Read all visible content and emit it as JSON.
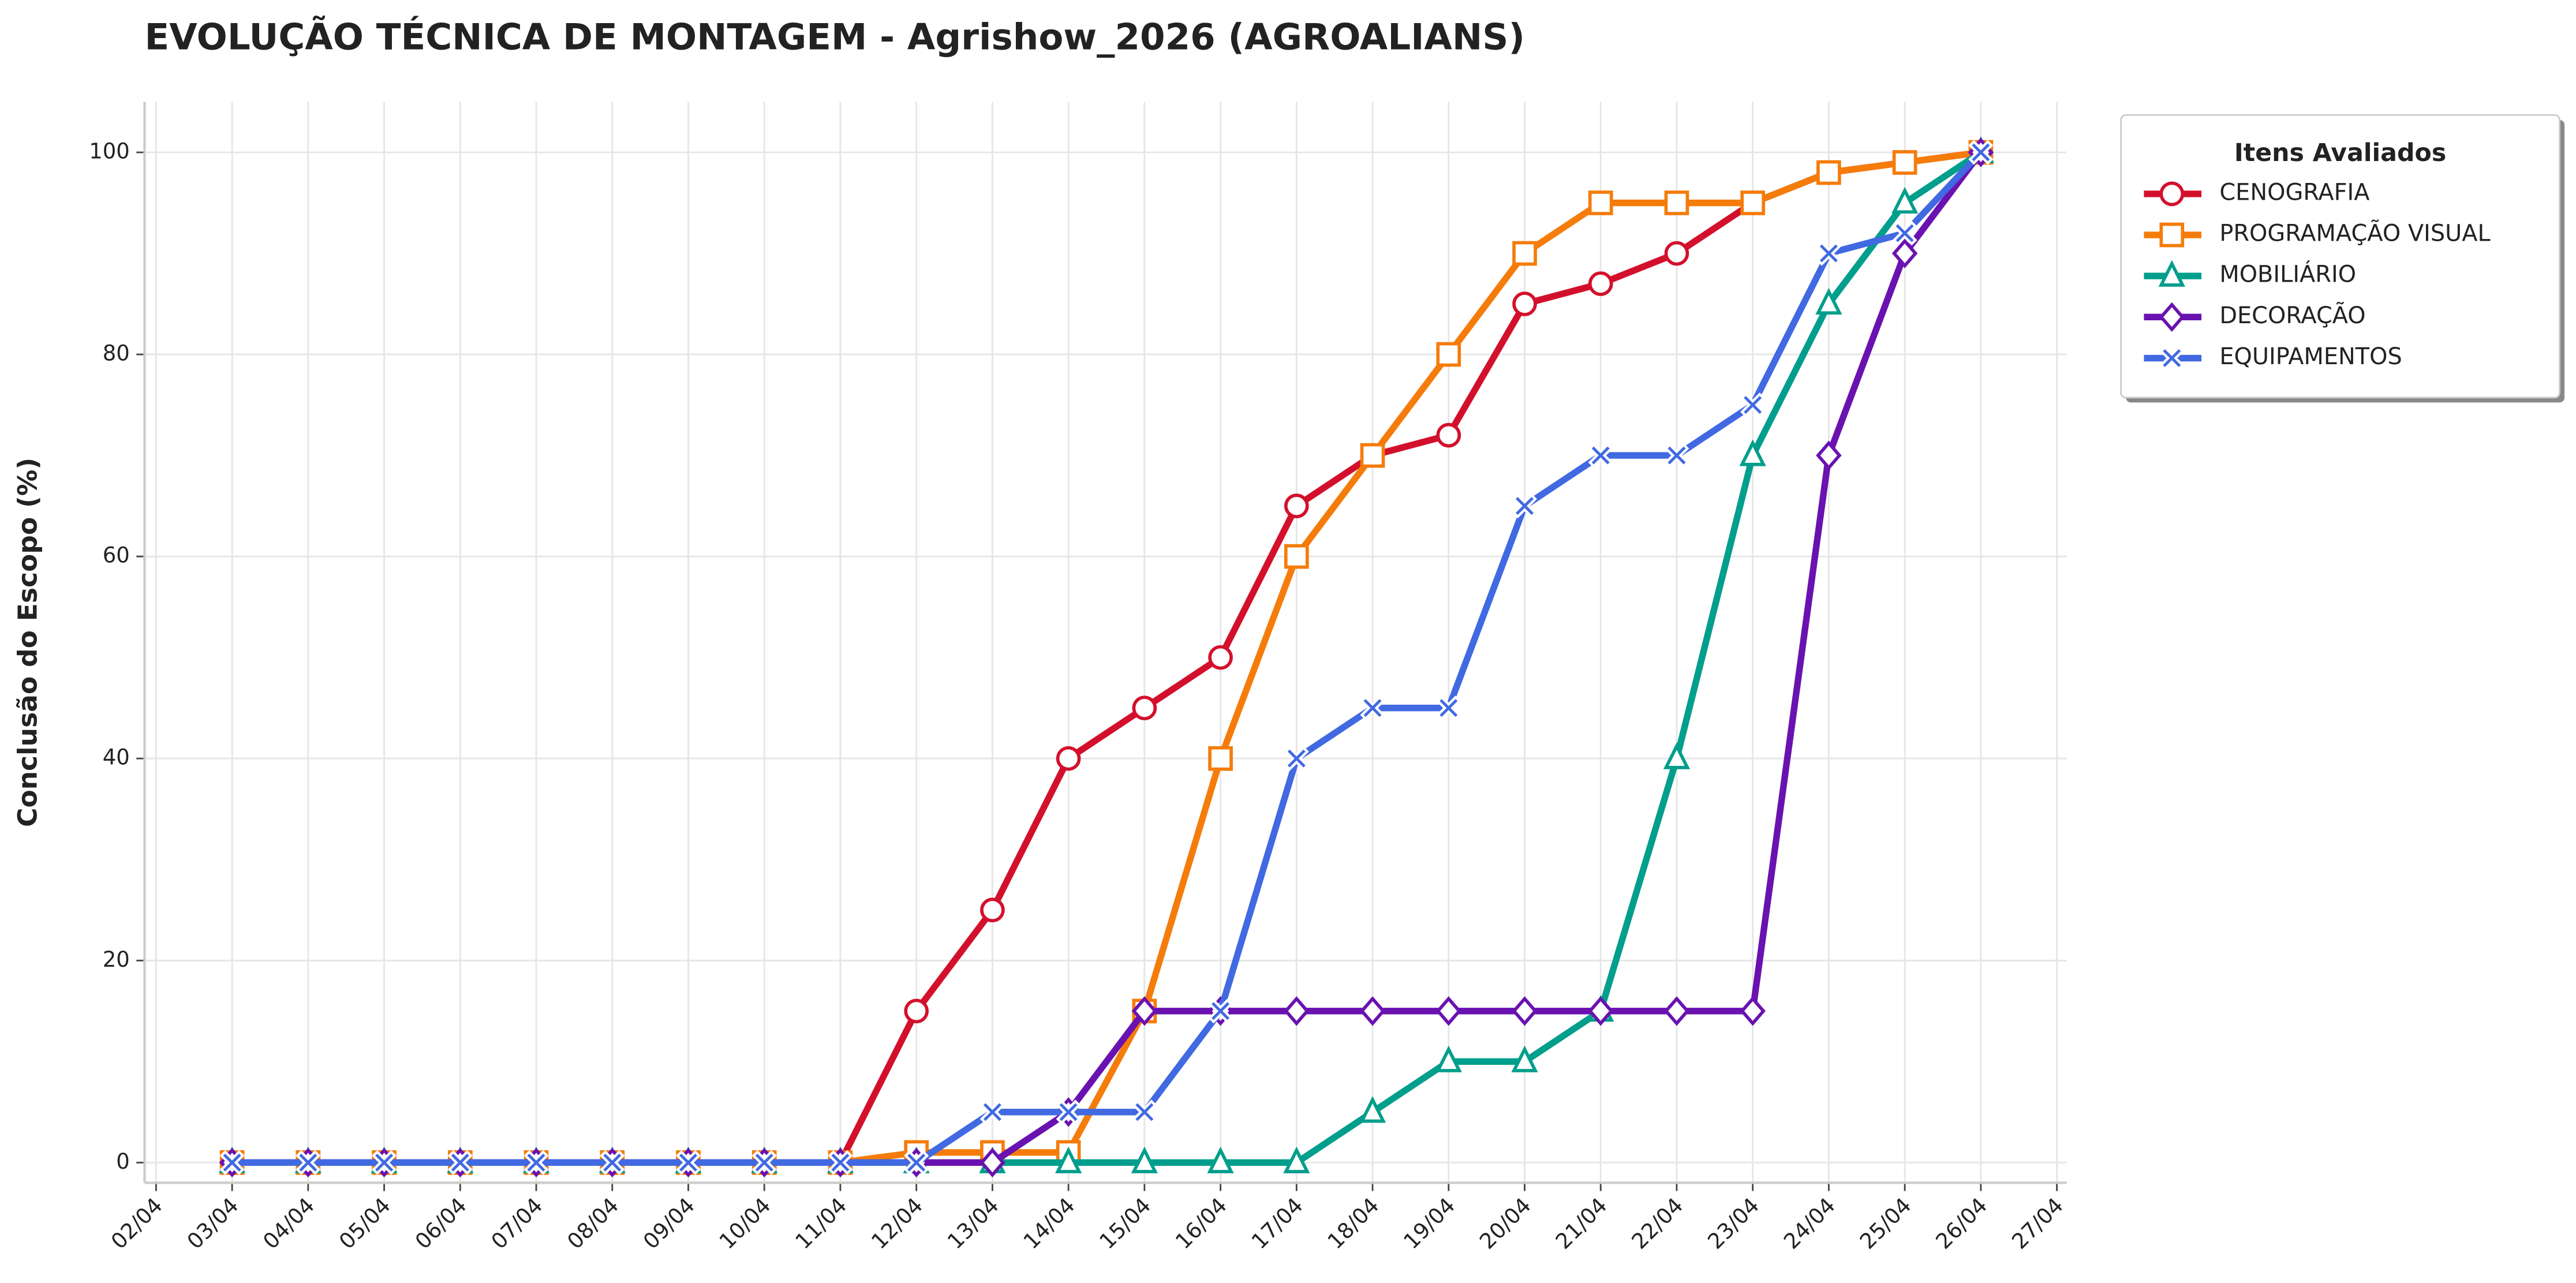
{
  "chart_data": {
    "type": "line",
    "title": "EVOLUÇÃO TÉCNICA DE MONTAGEM - Agrishow_2026 (AGROALIANS)",
    "y_label": "Conclusão do Escopo (%)",
    "x": [
      "03/04",
      "04/04",
      "05/04",
      "06/04",
      "07/04",
      "08/04",
      "09/04",
      "10/04",
      "11/04",
      "12/04",
      "13/04",
      "14/04",
      "15/04",
      "16/04",
      "17/04",
      "18/04",
      "19/04",
      "20/04",
      "21/04",
      "22/04",
      "23/04",
      "24/04",
      "25/04",
      "26/04"
    ],
    "xticks": [
      "02/04",
      "03/04",
      "04/04",
      "05/04",
      "06/04",
      "07/04",
      "08/04",
      "09/04",
      "10/04",
      "11/04",
      "12/04",
      "13/04",
      "14/04",
      "15/04",
      "16/04",
      "17/04",
      "18/04",
      "19/04",
      "20/04",
      "21/04",
      "22/04",
      "23/04",
      "24/04",
      "25/04",
      "26/04",
      "27/04"
    ],
    "ylim": [
      -2,
      105
    ],
    "yticks": [
      0,
      20,
      40,
      60,
      80,
      100
    ],
    "grid": true,
    "legend": "outside-upper-right",
    "legend_title": "Itens Avaliados",
    "series": [
      {
        "name": "CENOGRAFIA",
        "color": "#d3102c",
        "marker": "circle",
        "values": [
          0,
          0,
          0,
          0,
          0,
          0,
          0,
          0,
          0,
          15,
          25,
          40,
          45,
          50,
          65,
          70,
          72,
          85,
          87,
          90,
          95,
          98,
          99,
          100
        ]
      },
      {
        "name": "PROGRAMAÇÃO VISUAL",
        "color": "#f57c0a",
        "marker": "square",
        "values": [
          0,
          0,
          0,
          0,
          0,
          0,
          0,
          0,
          0,
          1,
          1,
          1,
          15,
          40,
          60,
          70,
          80,
          90,
          95,
          95,
          95,
          98,
          99,
          100
        ]
      },
      {
        "name": "MOBILIÁRIO",
        "color": "#009e8c",
        "marker": "triangle",
        "values": [
          0,
          0,
          0,
          0,
          0,
          0,
          0,
          0,
          0,
          0,
          0,
          0,
          0,
          0,
          0,
          5,
          10,
          10,
          15,
          40,
          70,
          85,
          95,
          100
        ]
      },
      {
        "name": "DECORAÇÃO",
        "color": "#6a12b0",
        "marker": "diamond",
        "values": [
          0,
          0,
          0,
          0,
          0,
          0,
          0,
          0,
          0,
          0,
          0,
          5,
          15,
          15,
          15,
          15,
          15,
          15,
          15,
          15,
          15,
          70,
          90,
          100
        ]
      },
      {
        "name": "EQUIPAMENTOS",
        "color": "#4169e1",
        "marker": "x",
        "values": [
          0,
          0,
          0,
          0,
          0,
          0,
          0,
          0,
          0,
          0,
          5,
          5,
          5,
          15,
          40,
          45,
          45,
          65,
          70,
          70,
          75,
          90,
          92,
          100
        ]
      }
    ]
  }
}
